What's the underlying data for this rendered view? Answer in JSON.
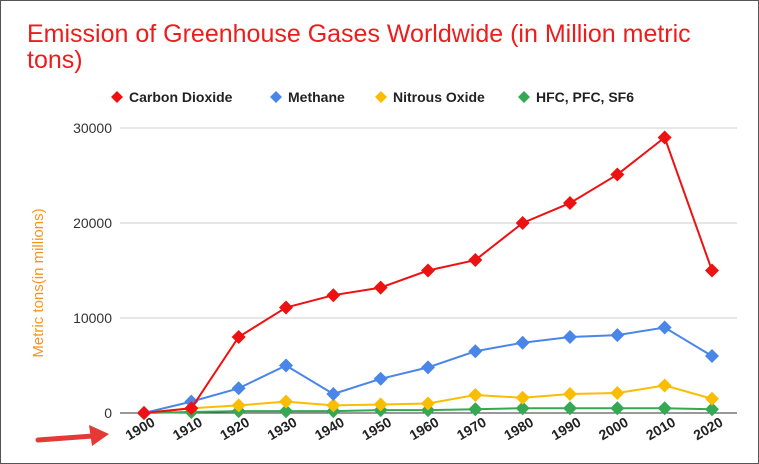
{
  "chart_data": {
    "type": "line",
    "title": "Emission of Greenhouse Gases Worldwide (in Million metric tons)",
    "xlabel": "",
    "ylabel": "Metric tons(in millions)",
    "categories": [
      "1900",
      "1910",
      "1920",
      "1930",
      "1940",
      "1950",
      "1960",
      "1970",
      "1980",
      "1990",
      "2000",
      "2010",
      "2020"
    ],
    "ylim": [
      0,
      30000
    ],
    "yticks": [
      0,
      10000,
      20000,
      30000
    ],
    "grid": true,
    "legend_position": "top",
    "series": [
      {
        "name": "Carbon Dioxide",
        "color": "#ee1111",
        "values": [
          0,
          500,
          8000,
          11100,
          12400,
          13200,
          15000,
          16100,
          20000,
          22100,
          25100,
          29000,
          15000
        ]
      },
      {
        "name": "Methane",
        "color": "#4a86e8",
        "values": [
          0,
          1200,
          2600,
          5000,
          2000,
          3600,
          4800,
          6500,
          7400,
          8000,
          8200,
          9000,
          6000
        ]
      },
      {
        "name": "Nitrous Oxide",
        "color": "#fbbc04",
        "values": [
          0,
          500,
          800,
          1200,
          800,
          900,
          1000,
          1900,
          1600,
          2000,
          2100,
          2900,
          1500
        ]
      },
      {
        "name": "HFC, PFC, SF6",
        "color": "#34a853",
        "values": [
          0,
          100,
          200,
          200,
          200,
          300,
          300,
          400,
          500,
          500,
          500,
          500,
          400
        ]
      }
    ],
    "annotations": [
      {
        "type": "arrow",
        "color": "#e53935",
        "points_to": "1900"
      }
    ]
  }
}
